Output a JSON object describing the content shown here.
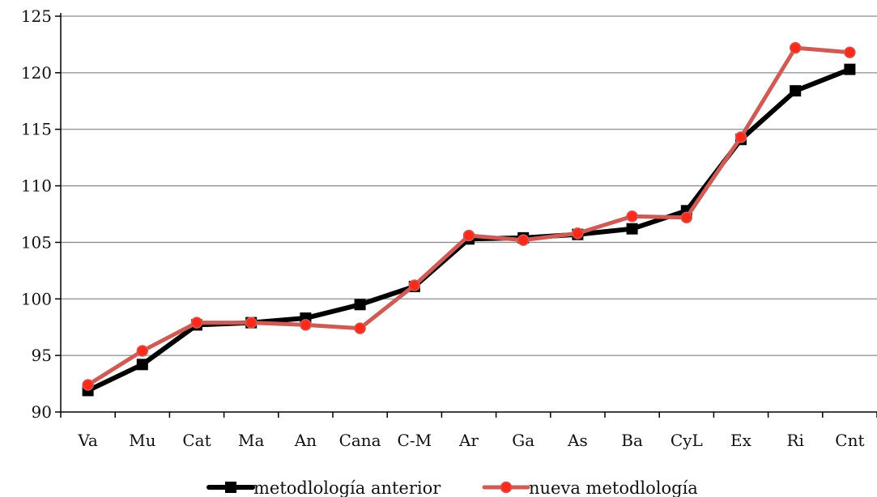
{
  "chart_data": {
    "type": "line",
    "categories": [
      "Va",
      "Mu",
      "Cat",
      "Ma",
      "An",
      "Cana",
      "C-M",
      "Ar",
      "Ga",
      "As",
      "Ba",
      "CyL",
      "Ex",
      "Ri",
      "Cnt"
    ],
    "series": [
      {
        "name": "metodlología anterior",
        "color": "#000000",
        "marker": "square",
        "values": [
          91.9,
          94.2,
          97.7,
          97.9,
          98.3,
          99.5,
          101.1,
          105.3,
          105.4,
          105.7,
          106.2,
          107.8,
          114.1,
          118.4,
          120.3
        ]
      },
      {
        "name": "nueva metodlología",
        "color": "#cd5c57",
        "marker_color": "#ff2a1a",
        "marker": "circle",
        "values": [
          92.4,
          95.4,
          97.9,
          97.9,
          97.7,
          97.4,
          101.2,
          105.6,
          105.2,
          105.8,
          107.3,
          107.2,
          114.3,
          122.2,
          121.8
        ]
      }
    ],
    "yticks": [
      90,
      95,
      100,
      105,
      110,
      115,
      120,
      125
    ],
    "ylim": [
      90,
      125
    ],
    "grid": true,
    "legend_position": "bottom"
  }
}
